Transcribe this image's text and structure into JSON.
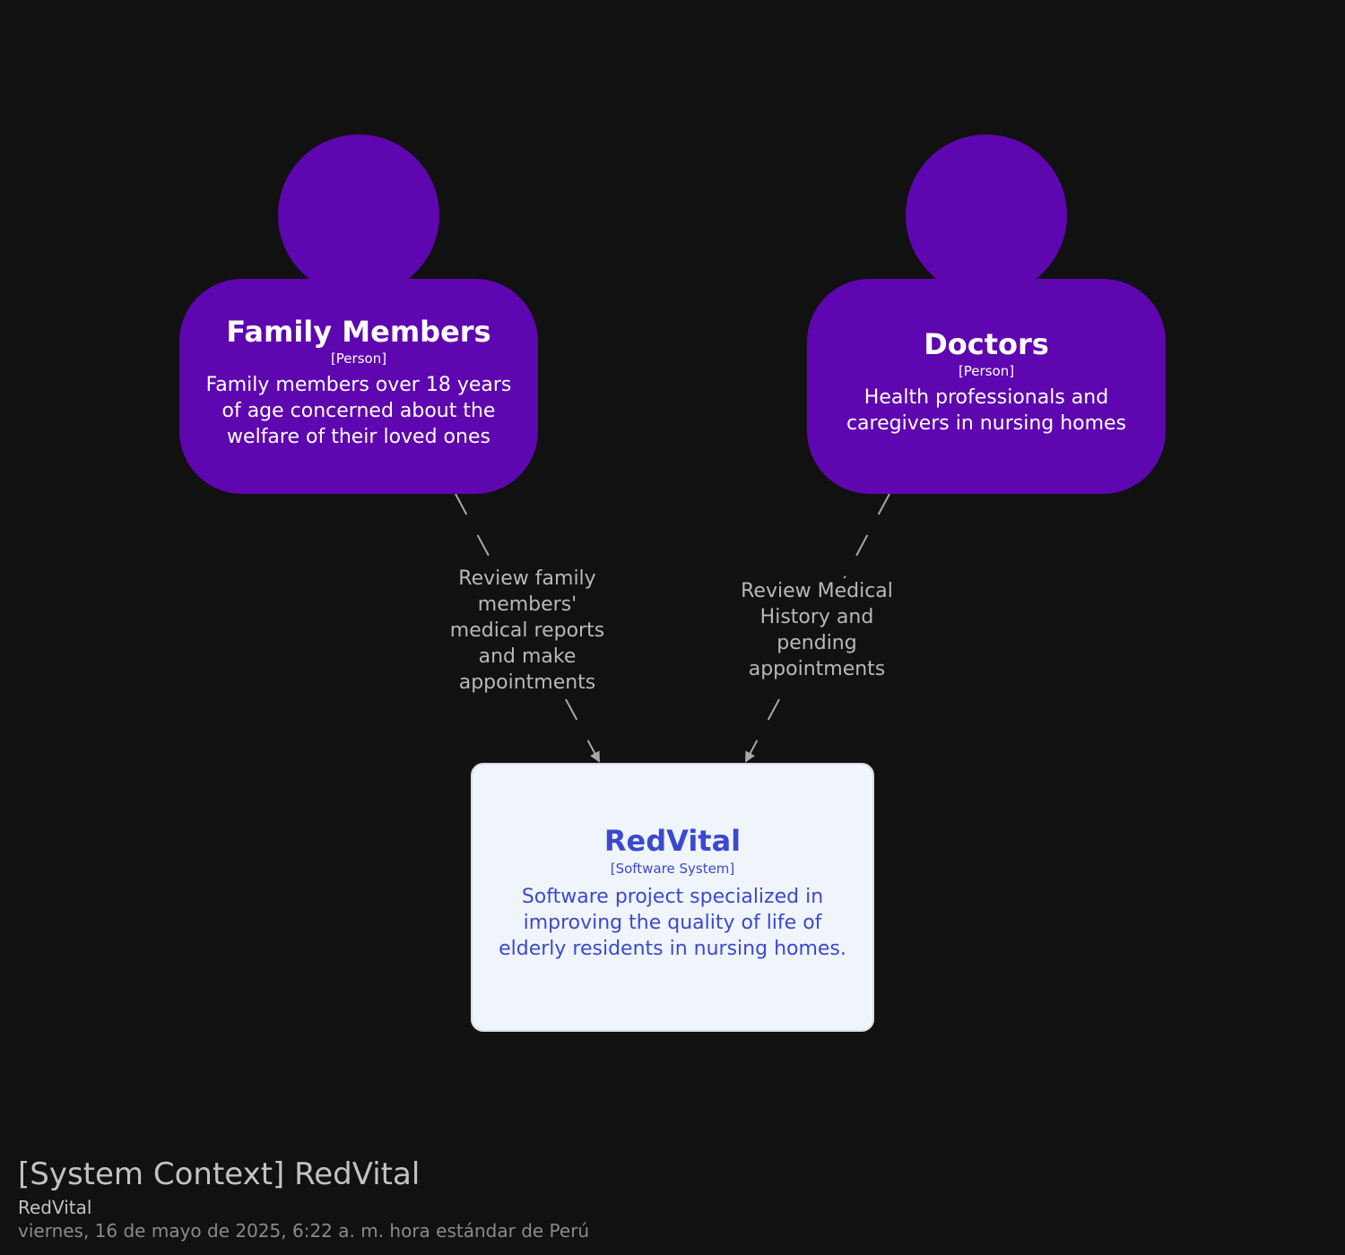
{
  "colors": {
    "background": "#111111",
    "person_fill": "#5e06b0",
    "person_text": "#ffffff",
    "system_fill": "#f0f5fc",
    "system_text": "#3b48d0",
    "relationship": "#a8a8a8"
  },
  "persons": [
    {
      "name": "Family Members",
      "type": "[Person]",
      "description": "Family members over 18 years of age concerned about the welfare of their loved ones"
    },
    {
      "name": "Doctors",
      "type": "[Person]",
      "description": "Health professionals and caregivers in nursing homes"
    }
  ],
  "system": {
    "name": "RedVital",
    "type": "[Software System]",
    "description": "Software project specialized in improving the quality of life of elderly residents in nursing homes."
  },
  "relationships": [
    {
      "from": "Family Members",
      "to": "RedVital",
      "label": "Review family members' medical reports and make appointments"
    },
    {
      "from": "Doctors",
      "to": "RedVital",
      "label": "Review Medical History and pending appointments"
    }
  ],
  "footer": {
    "title": "[System Context] RedVital",
    "subtitle": "RedVital",
    "date": "viernes, 16 de mayo de 2025, 6:22 a. m. hora estándar de Perú"
  }
}
